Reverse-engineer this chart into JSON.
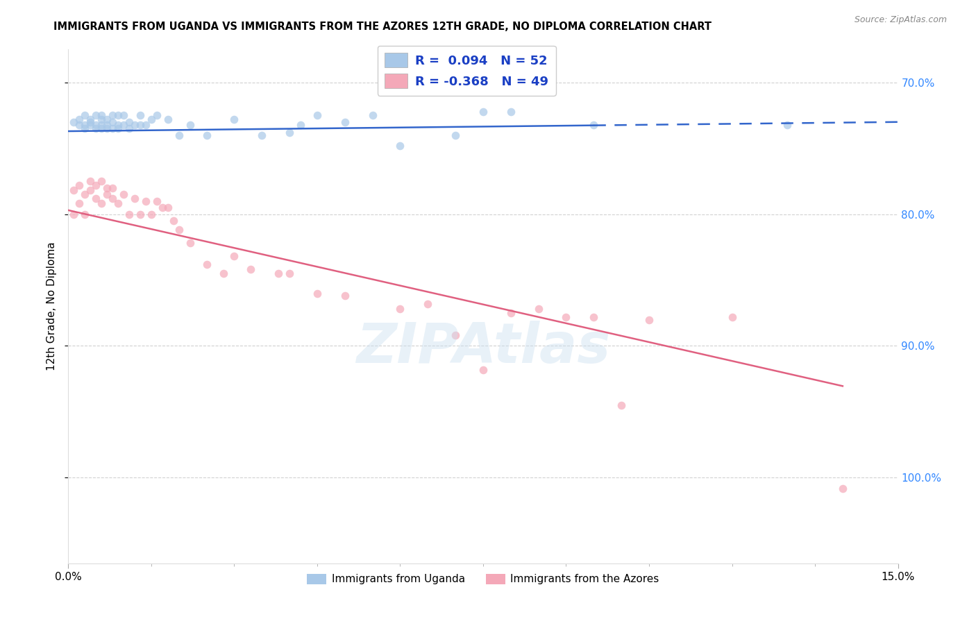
{
  "title": "IMMIGRANTS FROM UGANDA VS IMMIGRANTS FROM THE AZORES 12TH GRADE, NO DIPLOMA CORRELATION CHART",
  "source": "Source: ZipAtlas.com",
  "ylabel": "12th Grade, No Diploma",
  "legend_r_uganda": "0.094",
  "legend_n_uganda": "52",
  "legend_r_azores": "-0.368",
  "legend_n_azores": "49",
  "legend_label_uganda": "Immigrants from Uganda",
  "legend_label_azores": "Immigrants from the Azores",
  "blue_color": "#a8c8e8",
  "pink_color": "#f4a8b8",
  "blue_line_color": "#3366cc",
  "pink_line_color": "#e06080",
  "scatter_alpha": 0.7,
  "scatter_size": 70,
  "xmin": 0.0,
  "xmax": 0.15,
  "ymin": 0.635,
  "ymax": 1.025,
  "yticks": [
    0.7,
    0.8,
    0.9,
    1.0
  ],
  "uganda_x": [
    0.001,
    0.002,
    0.002,
    0.003,
    0.003,
    0.003,
    0.004,
    0.004,
    0.004,
    0.005,
    0.005,
    0.005,
    0.006,
    0.006,
    0.006,
    0.006,
    0.007,
    0.007,
    0.007,
    0.008,
    0.008,
    0.008,
    0.009,
    0.009,
    0.009,
    0.01,
    0.01,
    0.011,
    0.011,
    0.012,
    0.013,
    0.013,
    0.014,
    0.015,
    0.016,
    0.018,
    0.02,
    0.022,
    0.025,
    0.03,
    0.035,
    0.04,
    0.042,
    0.045,
    0.05,
    0.055,
    0.06,
    0.07,
    0.075,
    0.08,
    0.095,
    0.13
  ],
  "uganda_y": [
    0.97,
    0.968,
    0.972,
    0.968,
    0.965,
    0.975,
    0.97,
    0.968,
    0.972,
    0.965,
    0.968,
    0.975,
    0.965,
    0.968,
    0.972,
    0.975,
    0.965,
    0.968,
    0.972,
    0.965,
    0.97,
    0.975,
    0.965,
    0.968,
    0.975,
    0.968,
    0.975,
    0.965,
    0.97,
    0.968,
    0.968,
    0.975,
    0.968,
    0.972,
    0.975,
    0.972,
    0.96,
    0.968,
    0.96,
    0.972,
    0.96,
    0.962,
    0.968,
    0.975,
    0.97,
    0.975,
    0.952,
    0.96,
    0.978,
    0.978,
    0.968,
    0.968
  ],
  "azores_x": [
    0.001,
    0.001,
    0.002,
    0.002,
    0.003,
    0.003,
    0.004,
    0.004,
    0.005,
    0.005,
    0.006,
    0.006,
    0.007,
    0.007,
    0.008,
    0.008,
    0.009,
    0.01,
    0.011,
    0.012,
    0.013,
    0.014,
    0.015,
    0.016,
    0.017,
    0.018,
    0.019,
    0.02,
    0.022,
    0.025,
    0.028,
    0.03,
    0.033,
    0.038,
    0.04,
    0.045,
    0.05,
    0.06,
    0.065,
    0.07,
    0.075,
    0.08,
    0.085,
    0.09,
    0.095,
    0.1,
    0.105,
    0.12,
    0.14
  ],
  "azores_y": [
    0.9,
    0.918,
    0.908,
    0.922,
    0.9,
    0.915,
    0.918,
    0.925,
    0.912,
    0.922,
    0.908,
    0.925,
    0.915,
    0.92,
    0.912,
    0.92,
    0.908,
    0.915,
    0.9,
    0.912,
    0.9,
    0.91,
    0.9,
    0.91,
    0.905,
    0.905,
    0.895,
    0.888,
    0.878,
    0.862,
    0.855,
    0.868,
    0.858,
    0.855,
    0.855,
    0.84,
    0.838,
    0.828,
    0.832,
    0.808,
    0.782,
    0.825,
    0.828,
    0.822,
    0.822,
    0.755,
    0.82,
    0.822,
    0.692
  ],
  "uganda_line_xstart": 0.0,
  "uganda_line_xend": 0.15,
  "uganda_line_ystart": 0.963,
  "uganda_line_yend": 0.97,
  "uganda_solid_xend": 0.095,
  "azores_line_xstart": 0.0,
  "azores_line_xend": 0.15,
  "azores_line_ystart": 0.903,
  "azores_line_yend": 0.76
}
